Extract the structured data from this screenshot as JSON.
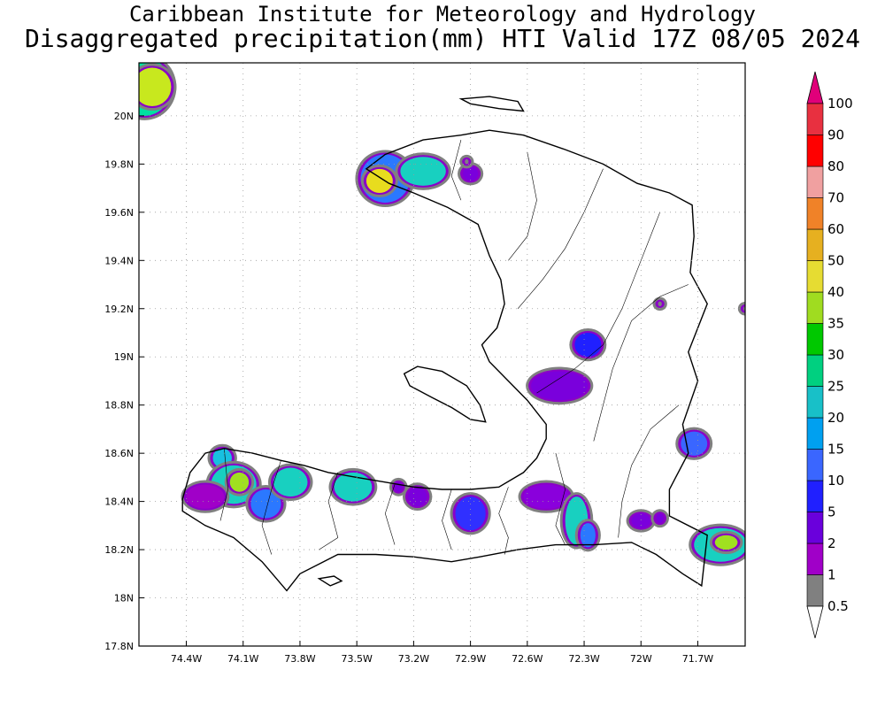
{
  "header": {
    "institute": "Caribbean Institute for Meteorology and Hydrology",
    "product": "Disaggregated precipitation(mm) HTI Valid 17Z 08/05 2024"
  },
  "map": {
    "lon_range": [
      -74.65,
      -71.45
    ],
    "lat_range": [
      17.8,
      20.22
    ],
    "lon_ticks": [
      {
        "v": -74.4,
        "label": "74.4W"
      },
      {
        "v": -74.1,
        "label": "74.1W"
      },
      {
        "v": -73.8,
        "label": "73.8W"
      },
      {
        "v": -73.5,
        "label": "73.5W"
      },
      {
        "v": -73.2,
        "label": "73.2W"
      },
      {
        "v": -72.9,
        "label": "72.9W"
      },
      {
        "v": -72.6,
        "label": "72.6W"
      },
      {
        "v": -72.3,
        "label": "72.3W"
      },
      {
        "v": -72.0,
        "label": "72W"
      },
      {
        "v": -71.7,
        "label": "71.7W"
      }
    ],
    "lat_ticks": [
      {
        "v": 17.8,
        "label": "17.8N"
      },
      {
        "v": 18.0,
        "label": "18N"
      },
      {
        "v": 18.2,
        "label": "18.2N"
      },
      {
        "v": 18.4,
        "label": "18.4N"
      },
      {
        "v": 18.6,
        "label": "18.6N"
      },
      {
        "v": 18.8,
        "label": "18.8N"
      },
      {
        "v": 19.0,
        "label": "19N"
      },
      {
        "v": 19.2,
        "label": "19.2N"
      },
      {
        "v": 19.4,
        "label": "19.4N"
      },
      {
        "v": 19.6,
        "label": "19.6N"
      },
      {
        "v": 19.8,
        "label": "19.8N"
      },
      {
        "v": 20.0,
        "label": "20N"
      }
    ],
    "grid": true,
    "land": [
      {
        "name": "haiti-mainland",
        "coords": [
          [
            -74.42,
            18.41
          ],
          [
            -74.38,
            18.52
          ],
          [
            -74.3,
            18.6
          ],
          [
            -74.2,
            18.62
          ],
          [
            -74.05,
            18.6
          ],
          [
            -73.9,
            18.57
          ],
          [
            -73.78,
            18.55
          ],
          [
            -73.65,
            18.52
          ],
          [
            -73.5,
            18.5
          ],
          [
            -73.35,
            18.48
          ],
          [
            -73.2,
            18.46
          ],
          [
            -73.05,
            18.45
          ],
          [
            -72.9,
            18.45
          ],
          [
            -72.75,
            18.46
          ],
          [
            -72.62,
            18.52
          ],
          [
            -72.55,
            18.58
          ],
          [
            -72.5,
            18.66
          ],
          [
            -72.5,
            18.72
          ],
          [
            -72.6,
            18.82
          ],
          [
            -72.7,
            18.9
          ],
          [
            -72.8,
            18.98
          ],
          [
            -72.84,
            19.05
          ],
          [
            -72.76,
            19.12
          ],
          [
            -72.72,
            19.22
          ],
          [
            -72.74,
            19.32
          ],
          [
            -72.8,
            19.42
          ],
          [
            -72.86,
            19.55
          ],
          [
            -73.02,
            19.62
          ],
          [
            -73.2,
            19.68
          ],
          [
            -73.33,
            19.72
          ],
          [
            -73.45,
            19.78
          ],
          [
            -73.35,
            19.84
          ],
          [
            -73.15,
            19.9
          ],
          [
            -72.95,
            19.92
          ],
          [
            -72.8,
            19.94
          ],
          [
            -72.62,
            19.92
          ],
          [
            -72.4,
            19.86
          ],
          [
            -72.2,
            19.8
          ],
          [
            -72.02,
            19.72
          ],
          [
            -71.85,
            19.68
          ],
          [
            -71.73,
            19.63
          ],
          [
            -71.72,
            19.5
          ],
          [
            -71.74,
            19.35
          ],
          [
            -71.65,
            19.22
          ],
          [
            -71.75,
            19.02
          ],
          [
            -71.7,
            18.9
          ],
          [
            -71.78,
            18.72
          ],
          [
            -71.75,
            18.6
          ],
          [
            -71.85,
            18.45
          ],
          [
            -71.85,
            18.34
          ],
          [
            -71.65,
            18.26
          ],
          [
            -71.68,
            18.05
          ],
          [
            -71.78,
            18.1
          ],
          [
            -71.92,
            18.18
          ],
          [
            -72.05,
            18.23
          ],
          [
            -72.25,
            18.22
          ],
          [
            -72.45,
            18.22
          ],
          [
            -72.65,
            18.2
          ],
          [
            -72.85,
            18.17
          ],
          [
            -73.0,
            18.15
          ],
          [
            -73.2,
            18.17
          ],
          [
            -73.4,
            18.18
          ],
          [
            -73.6,
            18.18
          ],
          [
            -73.8,
            18.1
          ],
          [
            -73.87,
            18.03
          ],
          [
            -74.0,
            18.15
          ],
          [
            -74.15,
            18.25
          ],
          [
            -74.3,
            18.3
          ],
          [
            -74.42,
            18.36
          ]
        ]
      },
      {
        "name": "gonave-island",
        "coords": [
          [
            -73.25,
            18.93
          ],
          [
            -73.18,
            18.96
          ],
          [
            -73.05,
            18.94
          ],
          [
            -72.92,
            18.88
          ],
          [
            -72.85,
            18.8
          ],
          [
            -72.82,
            18.73
          ],
          [
            -72.9,
            18.74
          ],
          [
            -73.0,
            18.79
          ],
          [
            -73.1,
            18.83
          ],
          [
            -73.22,
            18.88
          ]
        ]
      },
      {
        "name": "tortuga-island",
        "coords": [
          [
            -72.95,
            20.07
          ],
          [
            -72.8,
            20.08
          ],
          [
            -72.65,
            20.06
          ],
          [
            -72.62,
            20.02
          ],
          [
            -72.75,
            20.03
          ],
          [
            -72.9,
            20.05
          ]
        ]
      },
      {
        "name": "vache-island",
        "coords": [
          [
            -73.7,
            18.08
          ],
          [
            -73.62,
            18.09
          ],
          [
            -73.58,
            18.07
          ],
          [
            -73.64,
            18.05
          ]
        ]
      }
    ],
    "river_lines": [
      [
        [
          -72.2,
          19.78
        ],
        [
          -72.3,
          19.6
        ],
        [
          -72.4,
          19.45
        ],
        [
          -72.52,
          19.32
        ],
        [
          -72.65,
          19.2
        ]
      ],
      [
        [
          -71.9,
          19.6
        ],
        [
          -72.0,
          19.4
        ],
        [
          -72.1,
          19.2
        ],
        [
          -72.2,
          19.05
        ],
        [
          -72.35,
          18.95
        ],
        [
          -72.55,
          18.85
        ]
      ],
      [
        [
          -72.6,
          19.85
        ],
        [
          -72.55,
          19.65
        ],
        [
          -72.6,
          19.5
        ],
        [
          -72.7,
          19.4
        ]
      ],
      [
        [
          -72.95,
          19.9
        ],
        [
          -73.0,
          19.75
        ],
        [
          -72.95,
          19.65
        ]
      ],
      [
        [
          -71.75,
          19.3
        ],
        [
          -71.9,
          19.25
        ],
        [
          -72.05,
          19.15
        ],
        [
          -72.15,
          18.95
        ],
        [
          -72.2,
          18.8
        ],
        [
          -72.25,
          18.65
        ]
      ],
      [
        [
          -71.8,
          18.8
        ],
        [
          -71.95,
          18.7
        ],
        [
          -72.05,
          18.55
        ],
        [
          -72.1,
          18.4
        ],
        [
          -72.12,
          18.25
        ]
      ],
      [
        [
          -72.45,
          18.6
        ],
        [
          -72.4,
          18.45
        ],
        [
          -72.45,
          18.3
        ],
        [
          -72.4,
          18.22
        ]
      ],
      [
        [
          -72.7,
          18.46
        ],
        [
          -72.75,
          18.35
        ],
        [
          -72.7,
          18.25
        ],
        [
          -72.72,
          18.18
        ]
      ],
      [
        [
          -73.0,
          18.45
        ],
        [
          -73.05,
          18.32
        ],
        [
          -73.0,
          18.2
        ]
      ],
      [
        [
          -73.3,
          18.47
        ],
        [
          -73.35,
          18.35
        ],
        [
          -73.3,
          18.22
        ]
      ],
      [
        [
          -73.6,
          18.52
        ],
        [
          -73.65,
          18.4
        ],
        [
          -73.6,
          18.25
        ],
        [
          -73.7,
          18.2
        ]
      ],
      [
        [
          -73.9,
          18.57
        ],
        [
          -73.95,
          18.45
        ],
        [
          -74.0,
          18.3
        ],
        [
          -73.95,
          18.18
        ]
      ],
      [
        [
          -74.2,
          18.62
        ],
        [
          -74.18,
          18.45
        ],
        [
          -74.22,
          18.32
        ]
      ]
    ],
    "rain_cells": [
      {
        "lon": -74.62,
        "lat": 20.12,
        "rx": 0.14,
        "ry": 0.12,
        "c": "#00e0a0"
      },
      {
        "lon": -74.58,
        "lat": 20.12,
        "rx": 0.1,
        "ry": 0.08,
        "c": "#c8e81e"
      },
      {
        "lon": -73.35,
        "lat": 19.74,
        "rx": 0.13,
        "ry": 0.1,
        "c": "#2b78ff"
      },
      {
        "lon": -73.38,
        "lat": 19.73,
        "rx": 0.07,
        "ry": 0.05,
        "c": "#e8dc1e"
      },
      {
        "lon": -73.15,
        "lat": 19.77,
        "rx": 0.12,
        "ry": 0.06,
        "c": "#18d0c0"
      },
      {
        "lon": -72.9,
        "lat": 19.76,
        "rx": 0.04,
        "ry": 0.03,
        "c": "#7a00dc"
      },
      {
        "lon": -72.28,
        "lat": 19.05,
        "rx": 0.07,
        "ry": 0.05,
        "c": "#2020ff"
      },
      {
        "lon": -72.43,
        "lat": 18.88,
        "rx": 0.15,
        "ry": 0.06,
        "c": "#7a00dc"
      },
      {
        "lon": -71.72,
        "lat": 18.64,
        "rx": 0.07,
        "ry": 0.05,
        "c": "#3a66ff"
      },
      {
        "lon": -74.21,
        "lat": 18.58,
        "rx": 0.05,
        "ry": 0.04,
        "c": "#18c0e0"
      },
      {
        "lon": -74.15,
        "lat": 18.47,
        "rx": 0.12,
        "ry": 0.08,
        "c": "#18d0c0"
      },
      {
        "lon": -74.12,
        "lat": 18.48,
        "rx": 0.05,
        "ry": 0.04,
        "c": "#a0e020"
      },
      {
        "lon": -74.3,
        "lat": 18.42,
        "rx": 0.1,
        "ry": 0.05,
        "c": "#a000c8"
      },
      {
        "lon": -73.98,
        "lat": 18.39,
        "rx": 0.08,
        "ry": 0.06,
        "c": "#2b78ff"
      },
      {
        "lon": -73.85,
        "lat": 18.48,
        "rx": 0.09,
        "ry": 0.06,
        "c": "#18d0c0"
      },
      {
        "lon": -73.52,
        "lat": 18.46,
        "rx": 0.1,
        "ry": 0.06,
        "c": "#18d0c0"
      },
      {
        "lon": -73.28,
        "lat": 18.46,
        "rx": 0.02,
        "ry": 0.02,
        "c": "#7a00dc"
      },
      {
        "lon": -73.18,
        "lat": 18.42,
        "rx": 0.05,
        "ry": 0.04,
        "c": "#7a00dc"
      },
      {
        "lon": -72.9,
        "lat": 18.35,
        "rx": 0.08,
        "ry": 0.07,
        "c": "#3030ff"
      },
      {
        "lon": -72.5,
        "lat": 18.42,
        "rx": 0.12,
        "ry": 0.05,
        "c": "#8a00dc"
      },
      {
        "lon": -72.34,
        "lat": 18.32,
        "rx": 0.06,
        "ry": 0.1,
        "c": "#18d0c0"
      },
      {
        "lon": -72.28,
        "lat": 18.26,
        "rx": 0.04,
        "ry": 0.05,
        "c": "#2b78ff"
      },
      {
        "lon": -72.0,
        "lat": 18.32,
        "rx": 0.05,
        "ry": 0.03,
        "c": "#7a00dc"
      },
      {
        "lon": -71.9,
        "lat": 18.33,
        "rx": 0.02,
        "ry": 0.02,
        "c": "#7a00dc"
      },
      {
        "lon": -71.58,
        "lat": 18.22,
        "rx": 0.14,
        "ry": 0.07,
        "c": "#18d0c0"
      },
      {
        "lon": -71.55,
        "lat": 18.23,
        "rx": 0.06,
        "ry": 0.03,
        "c": "#a0e020"
      },
      {
        "lon": -72.92,
        "lat": 19.81,
        "rx": 0.01,
        "ry": 0.01,
        "c": "#808080"
      },
      {
        "lon": -71.9,
        "lat": 19.22,
        "rx": 0.01,
        "ry": 0.01,
        "c": "#808080"
      },
      {
        "lon": -71.45,
        "lat": 19.2,
        "rx": 0.01,
        "ry": 0.01,
        "c": "#808080"
      }
    ]
  },
  "colorbar": {
    "levels": [
      {
        "label": "0.5",
        "color": "#ffffff"
      },
      {
        "label": "1",
        "color": "#808080"
      },
      {
        "label": "2",
        "color": "#a000c8"
      },
      {
        "label": "5",
        "color": "#6a00dc"
      },
      {
        "label": "10",
        "color": "#2020ff"
      },
      {
        "label": "15",
        "color": "#3a66ff"
      },
      {
        "label": "20",
        "color": "#00a0f0"
      },
      {
        "label": "25",
        "color": "#18c0c8"
      },
      {
        "label": "30",
        "color": "#00d080"
      },
      {
        "label": "35",
        "color": "#00c800"
      },
      {
        "label": "40",
        "color": "#a0dc20"
      },
      {
        "label": "50",
        "color": "#e6dc32"
      },
      {
        "label": "60",
        "color": "#e6b020"
      },
      {
        "label": "70",
        "color": "#f08228"
      },
      {
        "label": "80",
        "color": "#f0a0a0"
      },
      {
        "label": "90",
        "color": "#ff0000"
      },
      {
        "label": "100",
        "color": "#e83040"
      }
    ],
    "over_color": "#e0007a"
  }
}
